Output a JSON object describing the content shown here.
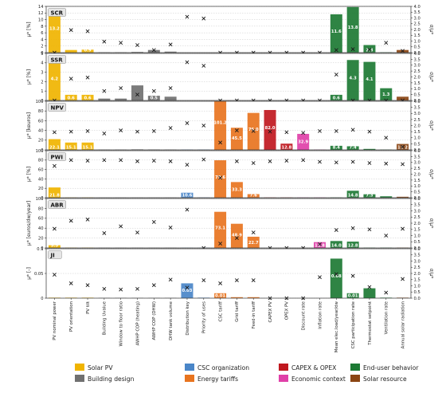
{
  "figure": {
    "mu_axis_label": "μ*",
    "sigma_axis_label": "σ/μ*",
    "legend": [
      {
        "name": "Solar PV",
        "color": "#f0b400"
      },
      {
        "name": "Building design",
        "color": "#707070"
      },
      {
        "name": "CSC organization",
        "color": "#4a86c8"
      },
      {
        "name": "Energy tariffs",
        "color": "#e8741f"
      },
      {
        "name": "CAPEX & OPEX",
        "color": "#c0181f"
      },
      {
        "name": "Economic context",
        "color": "#e040a8"
      },
      {
        "name": "End-user behavior",
        "color": "#1d7a34"
      },
      {
        "name": "Solar resource",
        "color": "#8b4513"
      }
    ]
  },
  "chart_data": [
    {
      "type": "bar",
      "title": "SCR",
      "ylabel": "μ* [%]",
      "y2label": "σ/μ*",
      "ylim": [
        0,
        14
      ],
      "y2lim": [
        0,
        4
      ],
      "yticks": [
        0,
        2,
        4,
        6,
        8,
        10,
        12,
        14
      ],
      "y2ticks": [
        0.0,
        0.5,
        1.0,
        1.5,
        2.0,
        2.5,
        3.0,
        3.5,
        4.0
      ],
      "categories": [
        "PV nominal power",
        "PV orientation",
        "PV tilt",
        "Building Uvalue",
        "Window to floor ratio",
        "AWHP COP (heating)",
        "AWHP COP (DHW)",
        "DHW tank volume",
        "Distribution key",
        "Priority of uses",
        "CSC tariff",
        "Grid tariff",
        "Feed-in tariff",
        "CAPEX PV",
        "OPEX PV",
        "Discount rate",
        "Inflation rate",
        "Mean elec.load/year/dw",
        "CSC participation rate",
        "Thermostat setpoint",
        "Ventilation rate",
        "Annual solar radiation"
      ],
      "groups": [
        "Solar PV",
        "Solar PV",
        "Solar PV",
        "Building design",
        "Building design",
        "Building design",
        "Building design",
        "Building design",
        "CSC organization",
        "CSC organization",
        "Energy tariffs",
        "Energy tariffs",
        "Energy tariffs",
        "CAPEX & OPEX",
        "CAPEX & OPEX",
        "Economic context",
        "Economic context",
        "End-user behavior",
        "End-user behavior",
        "End-user behavior",
        "End-user behavior",
        "Solar resource"
      ],
      "values": [
        13.2,
        0.8,
        0.9,
        0.1,
        0.1,
        0.2,
        0.8,
        0.3,
        0.0,
        0.0,
        0.0,
        0.0,
        0.0,
        0.0,
        0.0,
        0.0,
        0.0,
        11.6,
        13.8,
        2.3,
        0.1,
        0.8
      ],
      "bar_labels": [
        "13.2",
        "",
        "0.9",
        "",
        "",
        "",
        "",
        "",
        "",
        "",
        "",
        "",
        "",
        "",
        "",
        "",
        "",
        "11.6",
        "13.8",
        "2.3",
        "",
        ""
      ],
      "sigma": [
        0.0,
        1.95,
        1.85,
        0.95,
        0.85,
        0.65,
        0.22,
        0.7,
        3.1,
        2.95,
        0.0,
        0.0,
        0.0,
        0.0,
        0.0,
        0.0,
        0.0,
        0.22,
        0.3,
        0.25,
        0.85,
        0.15
      ]
    },
    {
      "type": "bar",
      "title": "SSR",
      "ylabel": "μ* [%]",
      "y2label": "σ/μ*",
      "ylim": [
        0,
        5
      ],
      "y2lim": [
        0,
        4
      ],
      "yticks": [
        0,
        1,
        2,
        3,
        4,
        5
      ],
      "y2ticks": [
        0.0,
        0.5,
        1.0,
        1.5,
        2.0,
        2.5,
        3.0,
        3.5,
        4.0
      ],
      "categories": [
        "PV nominal power",
        "PV orientation",
        "PV tilt",
        "Building Uvalue",
        "Window to floor ratio",
        "AWHP COP (heating)",
        "AWHP COP (DHW)",
        "DHW tank volume",
        "Distribution key",
        "Priority of uses",
        "CSC tariff",
        "Grid tariff",
        "Feed-in tariff",
        "CAPEX PV",
        "OPEX PV",
        "Discount rate",
        "Inflation rate",
        "Mean elec.load/year/dw",
        "CSC participation rate",
        "Thermostat setpoint",
        "Ventilation rate",
        "Annual solar radiation"
      ],
      "groups": [
        "Solar PV",
        "Solar PV",
        "Solar PV",
        "Building design",
        "Building design",
        "Building design",
        "Building design",
        "Building design",
        "CSC organization",
        "CSC organization",
        "Energy tariffs",
        "Energy tariffs",
        "Energy tariffs",
        "CAPEX & OPEX",
        "CAPEX & OPEX",
        "Economic context",
        "Economic context",
        "End-user behavior",
        "End-user behavior",
        "End-user behavior",
        "End-user behavior",
        "Solar resource"
      ],
      "values": [
        4.2,
        0.6,
        0.6,
        0.2,
        0.2,
        1.6,
        0.5,
        0.4,
        0.0,
        0.0,
        0.0,
        0.0,
        0.0,
        0.0,
        0.0,
        0.0,
        0.0,
        0.6,
        4.3,
        4.1,
        1.3,
        0.4
      ],
      "bar_labels": [
        "4.2",
        "0.6",
        "0.6",
        "",
        "",
        "",
        "0.5",
        "",
        "",
        "",
        "",
        "",
        "",
        "",
        "",
        "",
        "",
        "0.6",
        "4.3",
        "4.1",
        "1.3",
        ""
      ],
      "sigma": [
        0.0,
        1.85,
        1.95,
        0.8,
        1.05,
        0.5,
        0.8,
        1.05,
        3.25,
        2.95,
        0.0,
        0.0,
        0.0,
        0.0,
        0.0,
        0.0,
        0.0,
        2.2,
        0.0,
        0.0,
        0.0,
        0.0
      ]
    },
    {
      "type": "bar",
      "title": "NPV",
      "ylabel": "μ* [keuros]",
      "y2label": "σ/μ*",
      "ylim": [
        0,
        100
      ],
      "y2lim": [
        0,
        4
      ],
      "yticks": [
        0,
        20,
        40,
        60,
        80,
        100
      ],
      "y2ticks": [
        0.0,
        0.5,
        1.0,
        1.5,
        2.0,
        2.5,
        3.0,
        3.5,
        4.0
      ],
      "categories": [
        "PV nominal power",
        "PV orientation",
        "PV tilt",
        "Building Uvalue",
        "Window to floor ratio",
        "AWHP COP (heating)",
        "AWHP COP (DHW)",
        "DHW tank volume",
        "Distribution key",
        "Priority of uses",
        "CSC tariff",
        "Grid tariff",
        "Feed-in tariff",
        "CAPEX PV",
        "OPEX PV",
        "Discount rate",
        "Inflation rate",
        "Mean elec.load/year/dw",
        "CSC participation rate",
        "Thermostat setpoint",
        "Ventilation rate",
        "Annual solar radiation"
      ],
      "groups": [
        "Solar PV",
        "Solar PV",
        "Solar PV",
        "Building design",
        "Building design",
        "Building design",
        "Building design",
        "Building design",
        "CSC organization",
        "CSC organization",
        "Energy tariffs",
        "Energy tariffs",
        "Energy tariffs",
        "CAPEX & OPEX",
        "CAPEX & OPEX",
        "Economic context",
        "Economic context",
        "End-user behavior",
        "End-user behavior",
        "End-user behavior",
        "End-user behavior",
        "Solar resource"
      ],
      "values": [
        22.1,
        15.1,
        15.1,
        0.5,
        0.5,
        1.0,
        0.8,
        0.5,
        0.5,
        0.5,
        101.2,
        45.5,
        76.0,
        82.0,
        12.8,
        32.9,
        0.5,
        8.4,
        7.4,
        2.0,
        0.5,
        12.2
      ],
      "bar_labels": [
        "22.1",
        "15.1",
        "15.1",
        "",
        "",
        "",
        "",
        "",
        "",
        "",
        "101.2",
        "45.5",
        "76.0",
        "82.0",
        "12.8",
        "32.9",
        "",
        "8.4",
        "7.4",
        "",
        "",
        "12.2"
      ],
      "sigma": [
        1.45,
        1.5,
        1.55,
        1.35,
        1.6,
        1.5,
        1.55,
        1.8,
        2.2,
        2.0,
        0.6,
        1.6,
        1.55,
        1.5,
        1.45,
        1.4,
        1.55,
        1.55,
        1.65,
        1.5,
        1.0,
        0.25
      ]
    },
    {
      "type": "bar",
      "title": "PWI",
      "ylabel": "μ* [%]",
      "y2label": "σ/μ*",
      "ylim": [
        0,
        100
      ],
      "y2lim": [
        0,
        4
      ],
      "yticks": [
        0,
        20,
        40,
        60,
        80,
        100
      ],
      "y2ticks": [
        0.0,
        0.5,
        1.0,
        1.5,
        2.0,
        2.5,
        3.0,
        3.5,
        4.0
      ],
      "categories": [
        "PV nominal power",
        "PV orientation",
        "PV tilt",
        "Building Uvalue",
        "Window to floor ratio",
        "AWHP COP (heating)",
        "AWHP COP (DHW)",
        "DHW tank volume",
        "Distribution key",
        "Priority of uses",
        "CSC tariff",
        "Grid tariff",
        "Feed-in tariff",
        "CAPEX PV",
        "OPEX PV",
        "Discount rate",
        "Inflation rate",
        "Mean elec.load/year/dw",
        "CSC participation rate",
        "Thermostat setpoint",
        "Ventilation rate",
        "Annual solar radiation"
      ],
      "groups": [
        "Solar PV",
        "Solar PV",
        "Solar PV",
        "Building design",
        "Building design",
        "Building design",
        "Building design",
        "Building design",
        "CSC organization",
        "CSC organization",
        "Energy tariffs",
        "Energy tariffs",
        "Energy tariffs",
        "CAPEX & OPEX",
        "CAPEX & OPEX",
        "Economic context",
        "Economic context",
        "End-user behavior",
        "End-user behavior",
        "End-user behavior",
        "End-user behavior",
        "Solar resource"
      ],
      "values": [
        21.8,
        0.5,
        0.5,
        0.3,
        0.3,
        0.3,
        0.3,
        0.3,
        10.6,
        0.5,
        79.6,
        33.3,
        7.6,
        0.5,
        0.5,
        0.5,
        0.5,
        0.5,
        14.8,
        7.3,
        3.0,
        2.0
      ],
      "bar_labels": [
        "21.8",
        "",
        "",
        "",
        "",
        "",
        "",
        "",
        "10.6",
        "",
        "79.6",
        "33.3",
        "7.6",
        "",
        "",
        "",
        "",
        "",
        "14.8",
        "7.3",
        "",
        ""
      ],
      "sigma": [
        2.7,
        3.2,
        3.15,
        3.2,
        3.2,
        3.1,
        3.15,
        3.1,
        2.8,
        3.25,
        1.7,
        3.1,
        2.95,
        3.1,
        3.15,
        3.2,
        3.05,
        3.0,
        3.05,
        2.95,
        2.9,
        2.85
      ]
    },
    {
      "type": "bar",
      "title": "ABR",
      "ylabel": "μ* [euros/dw/year]",
      "y2label": "σ/μ*",
      "ylim": [
        0,
        100
      ],
      "y2lim": [
        0,
        4
      ],
      "yticks": [
        0,
        20,
        40,
        60,
        80,
        100
      ],
      "y2ticks": [
        0.0,
        0.5,
        1.0,
        1.5,
        2.0,
        2.5,
        3.0,
        3.5,
        4.0
      ],
      "categories": [
        "PV nominal power",
        "PV orientation",
        "PV tilt",
        "Building Uvalue",
        "Window to floor ratio",
        "AWHP COP (heating)",
        "AWHP COP (DHW)",
        "DHW tank volume",
        "Distribution key",
        "Priority of uses",
        "CSC tariff",
        "Grid tariff",
        "Feed-in tariff",
        "CAPEX PV",
        "OPEX PV",
        "Discount rate",
        "Inflation rate",
        "Mean elec.load/year/dw",
        "CSC participation rate",
        "Thermostat setpoint",
        "Ventilation rate",
        "Annual solar radiation"
      ],
      "groups": [
        "Solar PV",
        "Solar PV",
        "Solar PV",
        "Building design",
        "Building design",
        "Building design",
        "Building design",
        "Building design",
        "CSC organization",
        "CSC organization",
        "Energy tariffs",
        "Energy tariffs",
        "Energy tariffs",
        "CAPEX & OPEX",
        "CAPEX & OPEX",
        "Economic context",
        "Economic context",
        "End-user behavior",
        "End-user behavior",
        "End-user behavior",
        "End-user behavior",
        "Solar resource"
      ],
      "values": [
        5.5,
        0.5,
        0.5,
        0.3,
        0.3,
        0.3,
        0.3,
        0.3,
        0.3,
        0.3,
        73.1,
        48.9,
        22.7,
        0.0,
        0.0,
        0.0,
        11.8,
        14.0,
        12.8,
        0.5,
        0.5,
        0.5
      ],
      "bar_labels": [
        "5.5",
        "",
        "",
        "",
        "",
        "",
        "",
        "",
        "",
        "",
        "73.1",
        "48.9",
        "22.7",
        "",
        "",
        "",
        "11.8",
        "14.0",
        "12.8",
        "",
        "",
        ""
      ],
      "sigma": [
        1.55,
        2.2,
        2.3,
        1.2,
        1.75,
        1.25,
        2.1,
        1.65,
        3.1,
        0.0,
        0.35,
        0.8,
        1.25,
        0.0,
        0.0,
        0.0,
        0.3,
        1.45,
        1.6,
        1.5,
        1.0,
        1.55
      ]
    },
    {
      "type": "bar",
      "title": "JI",
      "ylabel": "μ* [-]",
      "y2label": "σ/μ*",
      "ylim": [
        0,
        0.1
      ],
      "y2lim": [
        0,
        4
      ],
      "yticks": [
        0.0,
        0.05,
        0.1
      ],
      "y2ticks": [
        0.0,
        0.5,
        1.0,
        1.5,
        2.0,
        2.5,
        3.0,
        3.5,
        4.0
      ],
      "categories": [
        "PV nominal power",
        "PV orientation",
        "PV tilt",
        "Building Uvalue",
        "Window to floor ratio",
        "AWHP COP (heating)",
        "AWHP COP (DHW)",
        "DHW tank volume",
        "Distribution key",
        "Priority of uses",
        "CSC tariff",
        "Grid tariff",
        "Feed-in tariff",
        "CAPEX PV",
        "OPEX PV",
        "Discount rate",
        "Inflation rate",
        "Mean elec.load/year/dw",
        "CSC participation rate",
        "Thermostat setpoint",
        "Ventilation rate",
        "Annual solar radiation"
      ],
      "groups": [
        "Solar PV",
        "Solar PV",
        "Solar PV",
        "Building design",
        "Building design",
        "Building design",
        "Building design",
        "Building design",
        "CSC organization",
        "CSC organization",
        "Energy tariffs",
        "Energy tariffs",
        "Energy tariffs",
        "CAPEX & OPEX",
        "CAPEX & OPEX",
        "Economic context",
        "Economic context",
        "End-user behavior",
        "End-user behavior",
        "End-user behavior",
        "End-user behavior",
        "Solar resource"
      ],
      "values": [
        0.001,
        0.001,
        0.001,
        0.0005,
        0.0005,
        0.0005,
        0.0005,
        0.0005,
        0.03,
        0.001,
        0.01,
        0.002,
        0.002,
        0.0,
        0.0,
        0.0,
        0.0,
        0.08,
        0.01,
        0.02,
        0.001,
        0.001
      ],
      "bar_labels": [
        "",
        "",
        "",
        "",
        "",
        "",
        "",
        "",
        "0.03",
        "",
        "0.01",
        "",
        "",
        "",
        "",
        "",
        "",
        "0.08",
        "0.01",
        "",
        "",
        ""
      ],
      "sigma": [
        1.9,
        1.2,
        1.05,
        0.75,
        0.7,
        0.75,
        1.05,
        1.5,
        0.85,
        1.45,
        1.2,
        1.45,
        1.45,
        0.0,
        0.0,
        0.0,
        1.7,
        1.95,
        1.8,
        0.9,
        0.45,
        1.55
      ]
    }
  ]
}
